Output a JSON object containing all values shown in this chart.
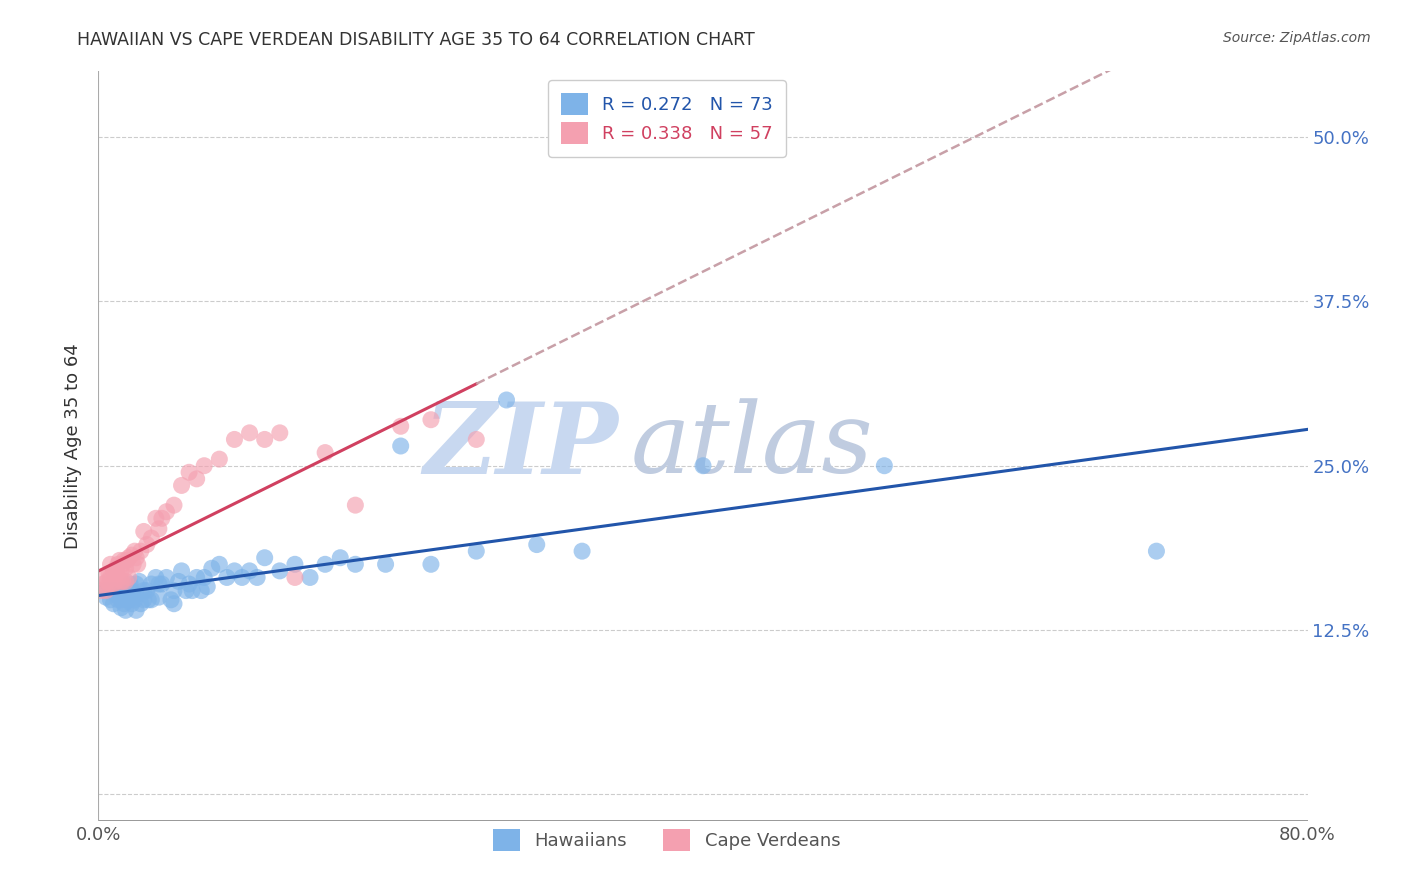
{
  "title": "HAWAIIAN VS CAPE VERDEAN DISABILITY AGE 35 TO 64 CORRELATION CHART",
  "source": "Source: ZipAtlas.com",
  "ylabel": "Disability Age 35 to 64",
  "xlim": [
    0.0,
    0.8
  ],
  "ylim": [
    -0.02,
    0.55
  ],
  "yticks": [
    0.0,
    0.125,
    0.25,
    0.375,
    0.5
  ],
  "ytick_labels": [
    "",
    "12.5%",
    "25.0%",
    "37.5%",
    "50.0%"
  ],
  "xticks": [
    0.0,
    0.1,
    0.2,
    0.3,
    0.4,
    0.5,
    0.6,
    0.7,
    0.8
  ],
  "xtick_labels": [
    "0.0%",
    "",
    "",
    "",
    "",
    "",
    "",
    "",
    "80.0%"
  ],
  "hawaiian_R": 0.272,
  "hawaiian_N": 73,
  "capeverdean_R": 0.338,
  "capeverdean_N": 57,
  "hawaiian_color": "#7EB3E8",
  "capeverdean_color": "#F4A0B0",
  "trendline_hawaiian_color": "#2255AA",
  "trendline_capeverdean_color": "#D04060",
  "trendline_extend_color": "#C8A0A8",
  "watermark_zip_color": "#C8D8F0",
  "watermark_atlas_color": "#C0CCE0",
  "hawaiian_x": [
    0.005,
    0.005,
    0.008,
    0.01,
    0.01,
    0.012,
    0.013,
    0.015,
    0.015,
    0.015,
    0.016,
    0.017,
    0.018,
    0.018,
    0.02,
    0.02,
    0.021,
    0.022,
    0.022,
    0.023,
    0.024,
    0.025,
    0.025,
    0.025,
    0.027,
    0.028,
    0.03,
    0.03,
    0.032,
    0.033,
    0.035,
    0.035,
    0.038,
    0.04,
    0.04,
    0.042,
    0.045,
    0.048,
    0.05,
    0.05,
    0.053,
    0.055,
    0.058,
    0.06,
    0.062,
    0.065,
    0.068,
    0.07,
    0.072,
    0.075,
    0.08,
    0.085,
    0.09,
    0.095,
    0.1,
    0.105,
    0.11,
    0.12,
    0.13,
    0.14,
    0.15,
    0.16,
    0.17,
    0.19,
    0.2,
    0.22,
    0.25,
    0.27,
    0.29,
    0.32,
    0.4,
    0.52,
    0.7
  ],
  "hawaiian_y": [
    0.155,
    0.15,
    0.148,
    0.155,
    0.145,
    0.152,
    0.148,
    0.155,
    0.148,
    0.142,
    0.15,
    0.145,
    0.152,
    0.14,
    0.155,
    0.148,
    0.16,
    0.155,
    0.145,
    0.15,
    0.148,
    0.16,
    0.152,
    0.14,
    0.162,
    0.145,
    0.155,
    0.148,
    0.155,
    0.148,
    0.16,
    0.148,
    0.165,
    0.16,
    0.15,
    0.16,
    0.165,
    0.148,
    0.155,
    0.145,
    0.162,
    0.17,
    0.155,
    0.16,
    0.155,
    0.165,
    0.155,
    0.165,
    0.158,
    0.172,
    0.175,
    0.165,
    0.17,
    0.165,
    0.17,
    0.165,
    0.18,
    0.17,
    0.175,
    0.165,
    0.175,
    0.18,
    0.175,
    0.175,
    0.265,
    0.175,
    0.185,
    0.3,
    0.19,
    0.185,
    0.25,
    0.25,
    0.185
  ],
  "capeverdean_x": [
    0.002,
    0.003,
    0.004,
    0.005,
    0.006,
    0.007,
    0.007,
    0.008,
    0.008,
    0.009,
    0.01,
    0.01,
    0.011,
    0.012,
    0.012,
    0.013,
    0.013,
    0.014,
    0.015,
    0.015,
    0.016,
    0.016,
    0.017,
    0.018,
    0.018,
    0.019,
    0.02,
    0.02,
    0.022,
    0.023,
    0.024,
    0.025,
    0.026,
    0.028,
    0.03,
    0.032,
    0.035,
    0.038,
    0.04,
    0.042,
    0.045,
    0.05,
    0.055,
    0.06,
    0.065,
    0.07,
    0.08,
    0.09,
    0.1,
    0.11,
    0.12,
    0.13,
    0.15,
    0.17,
    0.2,
    0.22,
    0.25
  ],
  "capeverdean_y": [
    0.155,
    0.16,
    0.165,
    0.155,
    0.162,
    0.168,
    0.16,
    0.175,
    0.165,
    0.16,
    0.17,
    0.16,
    0.168,
    0.172,
    0.162,
    0.175,
    0.165,
    0.178,
    0.17,
    0.162,
    0.175,
    0.162,
    0.178,
    0.172,
    0.162,
    0.178,
    0.18,
    0.165,
    0.182,
    0.175,
    0.185,
    0.18,
    0.175,
    0.185,
    0.2,
    0.19,
    0.195,
    0.21,
    0.202,
    0.21,
    0.215,
    0.22,
    0.235,
    0.245,
    0.24,
    0.25,
    0.255,
    0.27,
    0.275,
    0.27,
    0.275,
    0.165,
    0.26,
    0.22,
    0.28,
    0.285,
    0.27
  ]
}
